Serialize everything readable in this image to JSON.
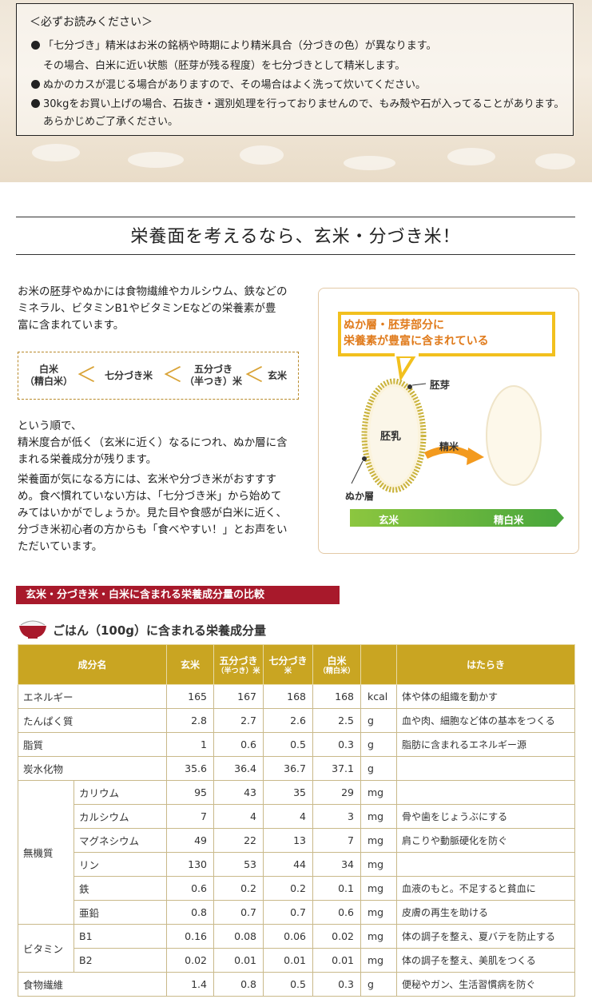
{
  "notice": {
    "title": "＜必ずお読みください＞",
    "lines": [
      "「七分づき」精米はお米の銘柄や時期により精米具合（分づきの色）が異なります。",
      "その場合、白米に近い状態（胚芽が残る程度）を七分づきとして精米します。",
      "ぬかのカスが混じる場合がありますので、その場合はよく洗って炊いてください。",
      "30kgをお買い上げの場合、石抜き・選別処理を行っておりませんので、もみ殻や石が入ってることがあります。",
      "あらかじめご了承ください。"
    ]
  },
  "heading": "栄養面を考えるなら、玄米・分づき米！",
  "intro": [
    "お米の胚芽やぬかには食物繊維やカルシウム、鉄などの",
    "ミネラル、ビタミンB1やビタミンEなどの栄養素が豊",
    "富に含まれています。"
  ],
  "order": {
    "item1a": "白米",
    "item1b": "（精白米）",
    "item2": "七分づき米",
    "item3a": "五分づき",
    "item3b": "（半つき）米",
    "item4": "玄米",
    "symbol": "＜"
  },
  "body": [
    "という順で、",
    "精米度合が低く（玄米に近く）なるにつれ、ぬか層に含",
    "まれる栄養成分が残ります。",
    "栄養面が気になる方には、玄米や分づき米がおすすす",
    "め。食べ慣れていない方は、「七分づき米」から始めて",
    "みてはいかがでしょうか。見た目や食感が白米に近く、",
    "分づき米初心者の方からも「食べやすい！」とお声をい",
    "ただいています。"
  ],
  "diagram": {
    "callout1": "ぬか層・胚芽部分に",
    "callout2": "栄養素が豊富に含まれている",
    "germ": "胚芽",
    "endosperm": "胚乳",
    "polish": "精米",
    "bran": "ぬか層",
    "left_label": "玄米",
    "right_label": "精白米",
    "colors": {
      "callout_border": "#f2c01e",
      "callout_text": "#e07b1c",
      "bar": "#4aa73c",
      "arrow": "#f39a1e"
    }
  },
  "section_title": "玄米・分づき米・白米に含まれる栄養成分量の比較",
  "subtitle": "ごはん（100g）に含まれる栄養成分量",
  "table": {
    "headers": {
      "name": "成分名",
      "c1": "玄米",
      "c2a": "五分づき",
      "c2b": "（半つき）米",
      "c3a": "七分づき",
      "c3b": "米",
      "c4a": "白米",
      "c4b": "（精白米）",
      "func": "はたらき"
    },
    "rows": [
      {
        "name": "エネルギー",
        "v1": "165",
        "v2": "167",
        "v3": "168",
        "v4": "168",
        "unit": "kcal",
        "desc": "体や体の組織を動かす"
      },
      {
        "name": "たんぱく質",
        "v1": "2.8",
        "v2": "2.7",
        "v3": "2.6",
        "v4": "2.5",
        "unit": "g",
        "desc": "血や肉、細胞など体の基本をつくる"
      },
      {
        "name": "脂質",
        "v1": "1",
        "v2": "0.6",
        "v3": "0.5",
        "v4": "0.3",
        "unit": "g",
        "desc": "脂肪に含まれるエネルギー源"
      },
      {
        "name": "炭水化物",
        "v1": "35.6",
        "v2": "36.4",
        "v3": "36.7",
        "v4": "37.1",
        "unit": "g",
        "desc": ""
      }
    ],
    "mineral_group": "無機質",
    "minerals": [
      {
        "name": "カリウム",
        "v1": "95",
        "v2": "43",
        "v3": "35",
        "v4": "29",
        "unit": "mg",
        "desc": ""
      },
      {
        "name": "カルシウム",
        "v1": "7",
        "v2": "4",
        "v3": "4",
        "v4": "3",
        "unit": "mg",
        "desc": "骨や歯をじょうぶにする"
      },
      {
        "name": "マグネシウム",
        "v1": "49",
        "v2": "22",
        "v3": "13",
        "v4": "7",
        "unit": "mg",
        "desc": "肩こりや動脈硬化を防ぐ"
      },
      {
        "name": "リン",
        "v1": "130",
        "v2": "53",
        "v3": "44",
        "v4": "34",
        "unit": "mg",
        "desc": ""
      },
      {
        "name": "鉄",
        "v1": "0.6",
        "v2": "0.2",
        "v3": "0.2",
        "v4": "0.1",
        "unit": "mg",
        "desc": "血液のもと。不足すると貧血に"
      },
      {
        "name": "亜鉛",
        "v1": "0.8",
        "v2": "0.7",
        "v3": "0.7",
        "v4": "0.6",
        "unit": "mg",
        "desc": "皮膚の再生を助ける"
      }
    ],
    "vitamin_group": "ビタミン",
    "vitamins": [
      {
        "name": "B1",
        "v1": "0.16",
        "v2": "0.08",
        "v3": "0.06",
        "v4": "0.02",
        "unit": "mg",
        "desc": "体の調子を整え、夏バテを防止する"
      },
      {
        "name": "B2",
        "v1": "0.02",
        "v2": "0.01",
        "v3": "0.01",
        "v4": "0.01",
        "unit": "mg",
        "desc": "体の調子を整え、美肌をつくる"
      }
    ],
    "fiber": {
      "name": "食物繊維",
      "v1": "1.4",
      "v2": "0.8",
      "v3": "0.5",
      "v4": "0.3",
      "unit": "g",
      "desc": "便秘やガン、生活習慣病を防ぐ"
    }
  }
}
